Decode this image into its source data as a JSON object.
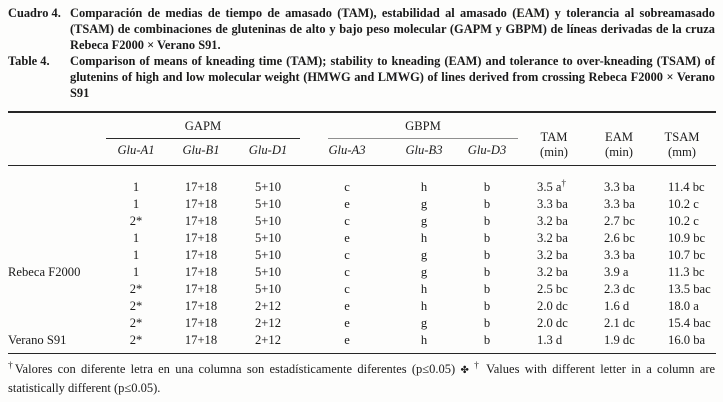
{
  "caption_es": {
    "label": "Cuadro 4.",
    "text": "Comparación de medias de tiempo de amasado (TAM), estabilidad al amasado (EAM) y tolerancia al sobreamasado (TSAM) de combinaciones de gluteninas de alto y bajo peso molecular (GAPM y GBPM) de líneas derivadas de la cruza Rebeca F2000 × Verano S91."
  },
  "caption_en": {
    "label": "Table 4.",
    "text": "Comparison of means of kneading time (TAM); stability to kneading (EAM) and tolerance to over-kneading (TSAM) of glutenins of high and low molecular weight (HMWG and LMWG) of lines derived from crossing Rebeca F2000 × Verano S91"
  },
  "table": {
    "group_headers": [
      {
        "label": "GAPM"
      },
      {
        "label": "GBPM"
      }
    ],
    "columns": [
      "Glu-A1",
      "Glu-B1",
      "Glu-D1",
      "Glu-A3",
      "Glu-B3",
      "Glu-D3"
    ],
    "value_headers": [
      {
        "line1": "TAM",
        "line2": "(min)"
      },
      {
        "line1": "EAM",
        "line2": "(min)"
      },
      {
        "line1": "TSAM",
        "line2": "(mm)"
      }
    ],
    "rows": [
      {
        "label": "",
        "glu_a1": "1",
        "glu_b1": "17+18",
        "glu_d1": "5+10",
        "glu_a3": "c",
        "glu_b3": "h",
        "glu_d3": "b",
        "tam": "3.5 a",
        "tam_sup": "†",
        "eam": "3.3 ba",
        "tsam": "11.4 bc"
      },
      {
        "label": "",
        "glu_a1": "1",
        "glu_b1": "17+18",
        "glu_d1": "5+10",
        "glu_a3": "e",
        "glu_b3": "g",
        "glu_d3": "b",
        "tam": "3.3 ba",
        "eam": "3.3 ba",
        "tsam": "10.2 c"
      },
      {
        "label": "",
        "glu_a1": "2*",
        "glu_b1": "17+18",
        "glu_d1": "5+10",
        "glu_a3": "c",
        "glu_b3": "g",
        "glu_d3": "b",
        "tam": "3.2 ba",
        "eam": "2.7 bc",
        "tsam": "10.2 c"
      },
      {
        "label": "",
        "glu_a1": "1",
        "glu_b1": "17+18",
        "glu_d1": "5+10",
        "glu_a3": "e",
        "glu_b3": "h",
        "glu_d3": "b",
        "tam": "3.2 ba",
        "eam": "2.6 bc",
        "tsam": "10.9 bc"
      },
      {
        "label": "",
        "glu_a1": "1",
        "glu_b1": "17+18",
        "glu_d1": "5+10",
        "glu_a3": "c",
        "glu_b3": "g",
        "glu_d3": "b",
        "tam": "3.2 ba",
        "eam": "3.3 ba",
        "tsam": "10.7 bc"
      },
      {
        "label": "Rebeca F2000",
        "glu_a1": "1",
        "glu_b1": "17+18",
        "glu_d1": "5+10",
        "glu_a3": "c",
        "glu_b3": "g",
        "glu_d3": "b",
        "tam": "3.2 ba",
        "eam": "3.9 a",
        "tsam": "11.3 bc"
      },
      {
        "label": "",
        "glu_a1": "2*",
        "glu_b1": "17+18",
        "glu_d1": "5+10",
        "glu_a3": "c",
        "glu_b3": "h",
        "glu_d3": "b",
        "tam": "2.5 bc",
        "eam": "2.3 dc",
        "tsam": "13.5 bac"
      },
      {
        "label": "",
        "glu_a1": "2*",
        "glu_b1": "17+18",
        "glu_d1": "2+12",
        "glu_a3": "e",
        "glu_b3": "h",
        "glu_d3": "b",
        "tam": "2.0 dc",
        "eam": "1.6 d",
        "tsam": "18.0 a"
      },
      {
        "label": "",
        "glu_a1": "2*",
        "glu_b1": "17+18",
        "glu_d1": "2+12",
        "glu_a3": "e",
        "glu_b3": "g",
        "glu_d3": "b",
        "tam": "2.0 dc",
        "eam": "2.1 dc",
        "tsam": "15.4 bac"
      },
      {
        "label": "Verano S91",
        "glu_a1": "2*",
        "glu_b1": "17+18",
        "glu_d1": "2+12",
        "glu_a3": "e",
        "glu_b3": "h",
        "glu_d3": "b",
        "tam": "1.3 d",
        "eam": "1.9 dc",
        "tsam": "16.0 ba"
      }
    ]
  },
  "footnote": {
    "dagger_es": "†",
    "text_es": "Valores con diferente letra en una columna son estadísticamente diferentes (p≤0.05) ",
    "separator": "✤",
    "dagger_en": "†",
    "text_en": " Values with different letter in a column are statistically different (p≤0.05)."
  }
}
